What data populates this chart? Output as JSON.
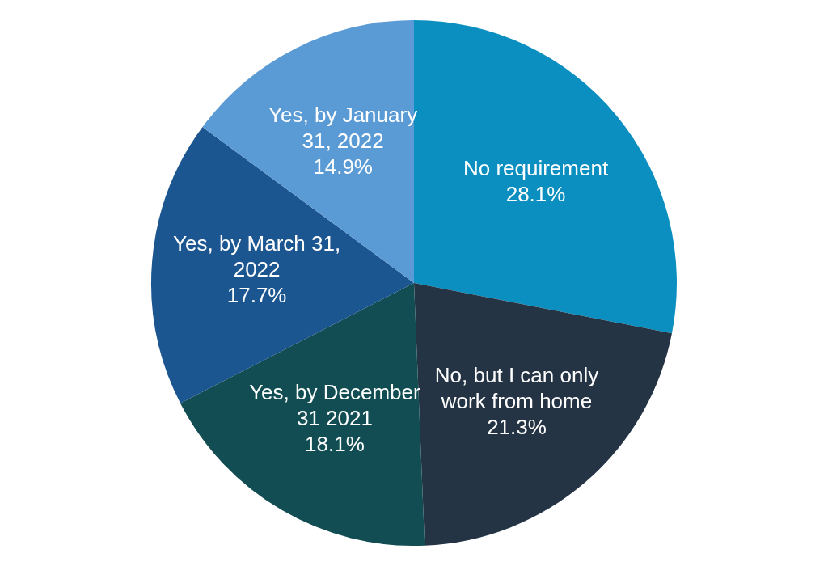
{
  "chart_data": {
    "type": "pie",
    "categories": [
      "No requirement",
      "No, but I can only work from home",
      "Yes, by December 31 2021",
      "Yes, by March 31, 2022",
      "Yes, by January 31, 2022"
    ],
    "values": [
      28.1,
      21.3,
      18.1,
      17.7,
      14.9
    ],
    "colors": [
      "#0a8fc0",
      "#253444",
      "#114d52",
      "#1c5690",
      "#5b9bd5"
    ],
    "value_labels": [
      "28.1%",
      "21.3%",
      "18.1%",
      "17.7%",
      "14.9%"
    ],
    "legend": false
  }
}
